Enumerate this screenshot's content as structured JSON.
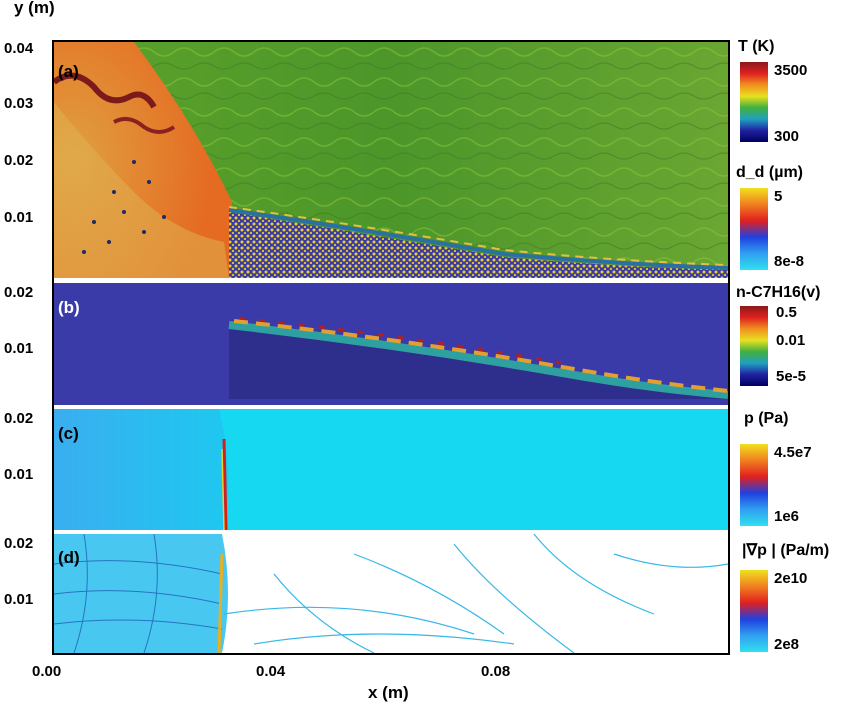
{
  "axes": {
    "y_label": "y (m)",
    "x_label": "x (m)",
    "x_ticks": [
      "0.00",
      "0.04",
      "0.08"
    ],
    "panel_a_y_ticks": [
      "0.04",
      "0.03",
      "0.02",
      "0.01"
    ],
    "panel_b_y_ticks": [
      "0.02",
      "0.01"
    ],
    "panel_c_y_ticks": [
      "0.02",
      "0.01"
    ],
    "panel_d_y_ticks": [
      "0.02",
      "0.01"
    ]
  },
  "panels": [
    {
      "label": "(a)",
      "label_color": "#000000"
    },
    {
      "label": "(b)",
      "label_color": "#ffffff"
    },
    {
      "label": "(c)",
      "label_color": "#000000"
    },
    {
      "label": "(d)",
      "label_color": "#000000"
    }
  ],
  "colorbars": {
    "temperature": {
      "label": "T (K)",
      "max": "3500",
      "min": "300"
    },
    "droplet_diameter": {
      "label": "d_d (µm)",
      "max": "5",
      "min": "8e-8"
    },
    "fuel_vapor": {
      "label": "n-C7H16(v)",
      "max": "0.5",
      "mid": "0.01",
      "min": "5e-5"
    },
    "pressure": {
      "label": "p (Pa)",
      "max": "4.5e7",
      "min": "1e6"
    },
    "pressure_gradient": {
      "label": "|∇p | (Pa/m)",
      "max": "2e10",
      "min": "2e8"
    }
  },
  "colors": {
    "background_green": "#4f9a2a",
    "post_shock_orange": "#e5722a",
    "vapor_blue": "#3a3aa8",
    "pressure_cyan": "#16d8f0",
    "gradient_white": "#ffffff",
    "droplet_yellow": "#e8cf3a"
  }
}
